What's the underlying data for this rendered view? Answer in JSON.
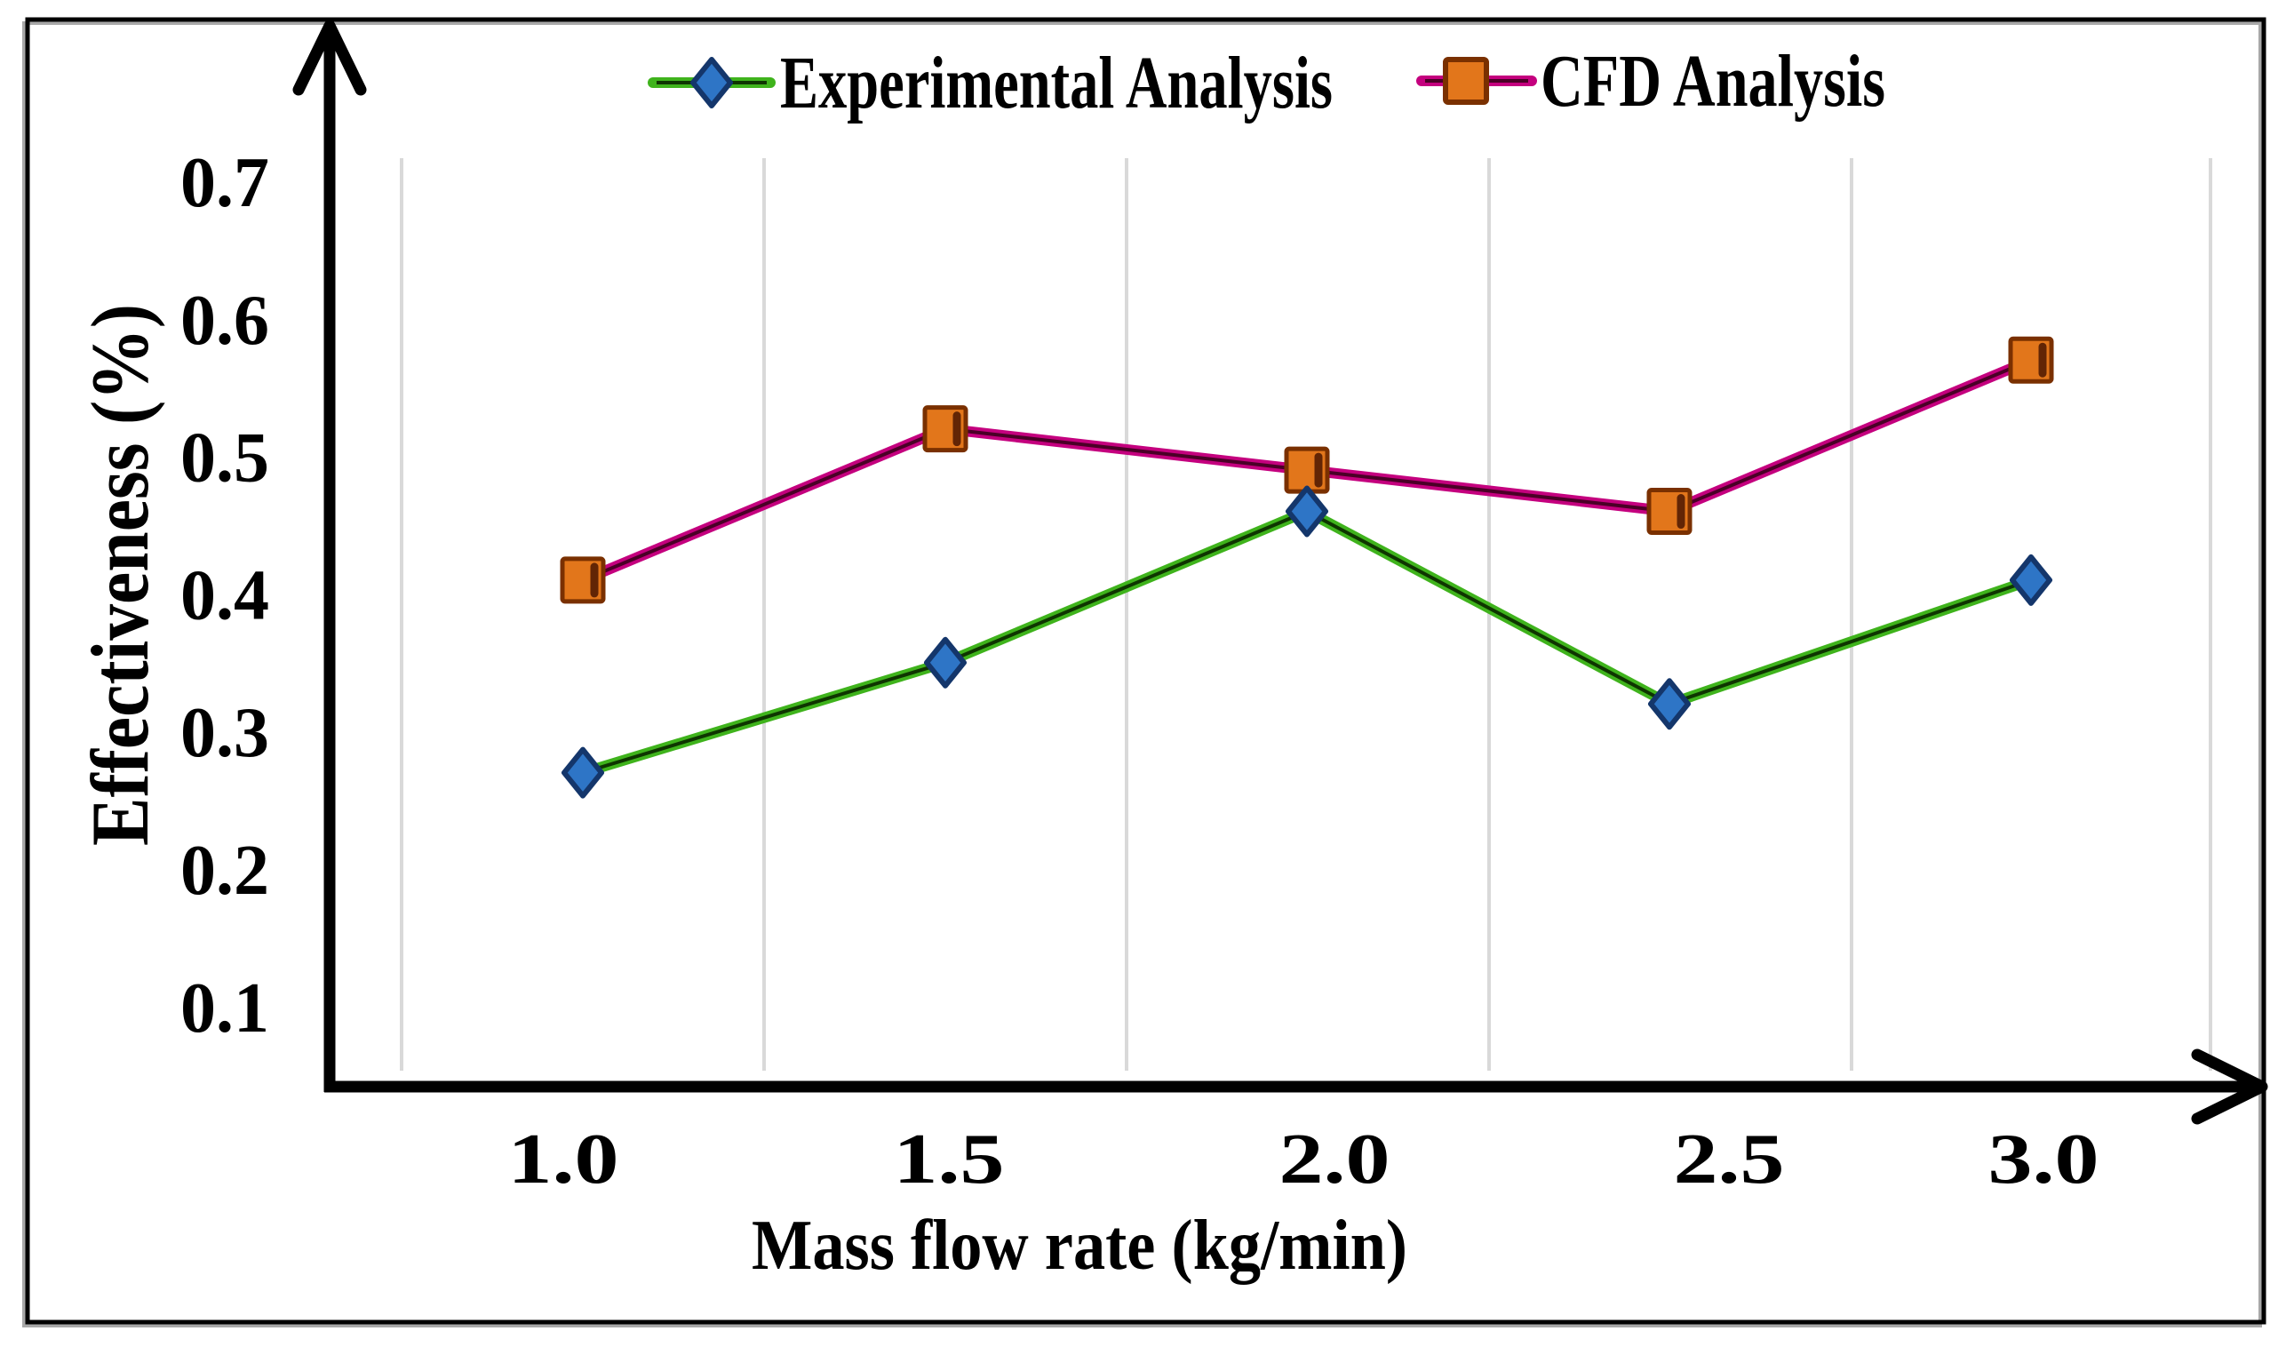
{
  "figure": {
    "background": "#FFFFFF",
    "border_color": "#000000",
    "border_shadow_color": "#A8A8A8",
    "axis_color": "#000000",
    "gridline_color": "#D9D9D9"
  },
  "chart_data": {
    "type": "line",
    "title": "",
    "xlabel": "Mass flow rate (kg/min)",
    "ylabel": "Effectiveness (%)",
    "x": [
      1.0,
      1.5,
      2.0,
      2.5,
      3.0
    ],
    "x_tick_labels": [
      "1.0",
      "1.5",
      "2.0",
      "2.5",
      "3.0"
    ],
    "y_ticks": [
      0.7,
      0.6,
      0.5,
      0.4,
      0.3,
      0.2,
      0.1
    ],
    "y_tick_labels": [
      "0.7",
      "0.6",
      "0.5",
      "0.4",
      "0.3",
      "0.2",
      "0.1"
    ],
    "ylim": [
      0.04,
      0.73
    ],
    "grid": "vertical-gridlines-only",
    "legend_position": "top-center",
    "series": [
      {
        "name": "Experimental Analysis",
        "marker": "diamond",
        "values": [
          0.27,
          0.35,
          0.46,
          0.32,
          0.41
        ],
        "line_color": "#3FB31C",
        "line_core_color": "#0E3500",
        "marker_fill": "#2E75C6",
        "marker_stroke": "#14366B"
      },
      {
        "name": "CFD Analysis",
        "marker": "square",
        "values": [
          0.41,
          0.52,
          0.49,
          0.46,
          0.57
        ],
        "line_color": "#C4007E",
        "line_core_color": "#4A0026",
        "marker_fill": "#E2761B",
        "marker_stroke": "#7A3000"
      }
    ]
  }
}
